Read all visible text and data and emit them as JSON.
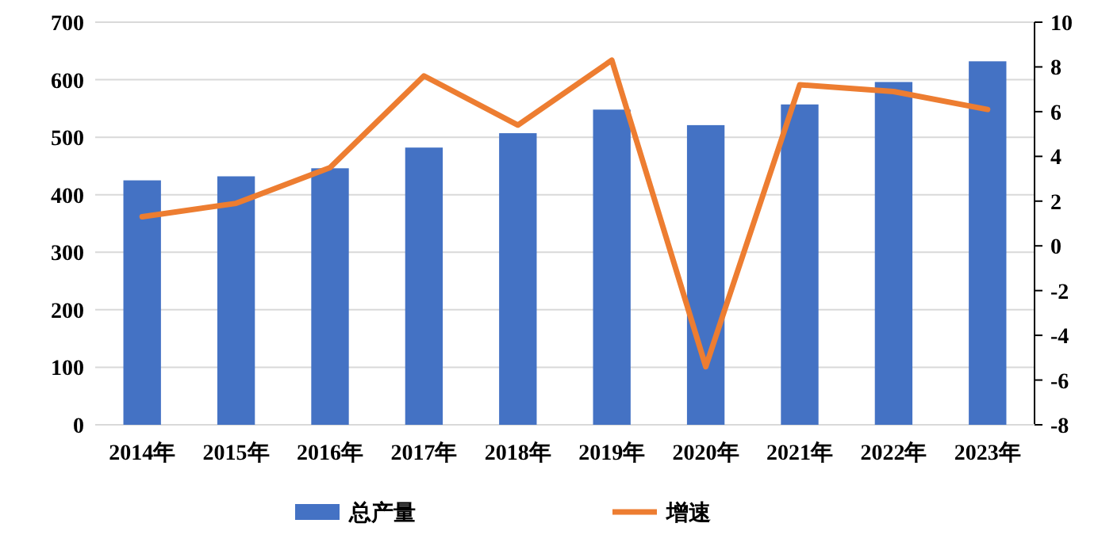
{
  "chart_data": {
    "type": "bar",
    "categories": [
      "2014年",
      "2015年",
      "2016年",
      "2017年",
      "2018年",
      "2019年",
      "2020年",
      "2021年",
      "2022年",
      "2023年"
    ],
    "series": [
      {
        "name": "总产量",
        "color": "#4472c4",
        "values": [
          425,
          432,
          446,
          482,
          507,
          548,
          521,
          557,
          596,
          632
        ]
      },
      {
        "name": "增速",
        "type": "line",
        "axis": "y2",
        "color": "#ed7d31",
        "values": [
          1.3,
          1.9,
          3.5,
          7.6,
          5.4,
          8.3,
          -5.4,
          7.2,
          6.9,
          6.1
        ]
      }
    ],
    "ylim": [
      0,
      700
    ],
    "yticks": [
      0,
      100,
      200,
      300,
      400,
      500,
      600,
      700
    ],
    "y2lim": [
      -8,
      10
    ],
    "y2ticks": [
      -8,
      -6,
      -4,
      -2,
      0,
      2,
      4,
      6,
      8,
      10
    ],
    "grid": "y",
    "legend": "bottom"
  }
}
